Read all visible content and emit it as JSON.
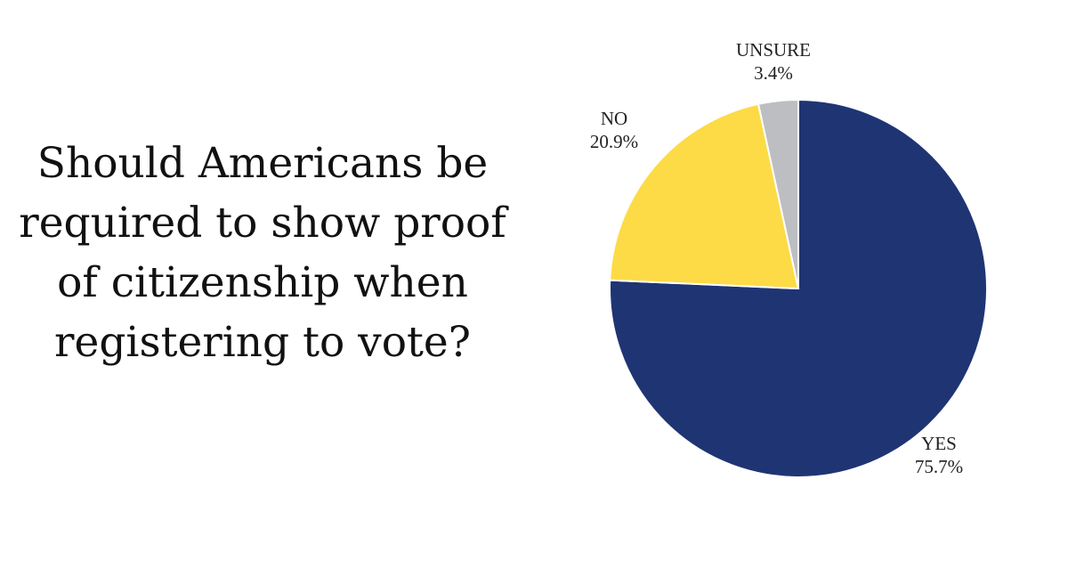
{
  "question": {
    "lines": [
      "Should Americans be",
      "required to show proof",
      "of citizenship when",
      "registering to vote?"
    ]
  },
  "chart_data": {
    "type": "pie",
    "title": "Should Americans be required to show proof of citizenship when registering to vote?",
    "slices": [
      {
        "label": "YES",
        "value": 75.7,
        "value_text": "75.7%",
        "color": "#1f3473"
      },
      {
        "label": "NO",
        "value": 20.9,
        "value_text": "20.9%",
        "color": "#fddb46"
      },
      {
        "label": "UNSURE",
        "value": 3.4,
        "value_text": "3.4%",
        "color": "#bcbec2"
      }
    ]
  }
}
